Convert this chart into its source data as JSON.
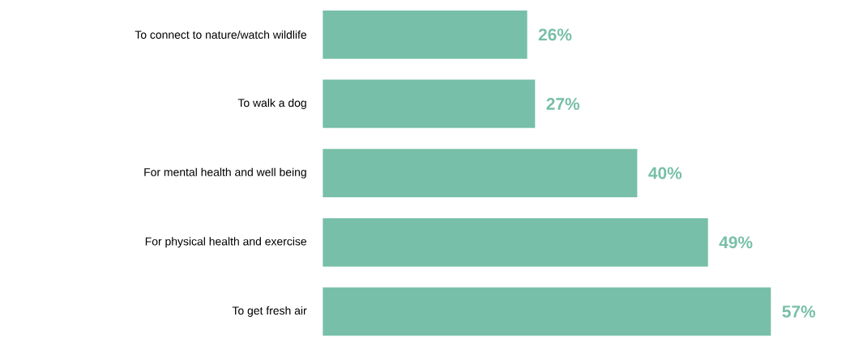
{
  "chart_data": {
    "type": "bar",
    "orientation": "horizontal",
    "categories": [
      "To connect to nature/watch wildlife",
      "To walk a dog",
      "For mental health and well being",
      "For physical health and exercise",
      "To get fresh air"
    ],
    "values": [
      26,
      27,
      40,
      49,
      57
    ],
    "value_labels": [
      "26%",
      "27%",
      "40%",
      "49%",
      "57%"
    ],
    "color": "#77bfa8"
  }
}
